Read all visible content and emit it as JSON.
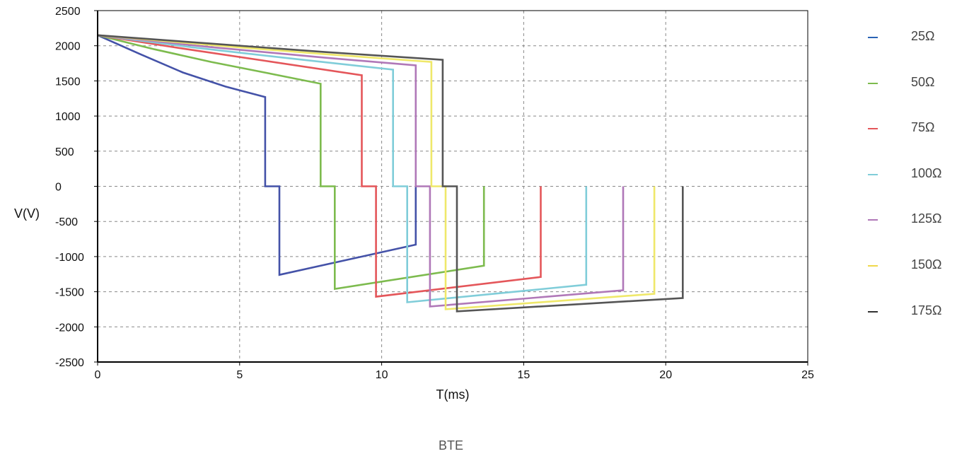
{
  "caption": "BTE",
  "chart_data": {
    "type": "line",
    "xlabel": "T(ms)",
    "ylabel": "V(V)",
    "xlim": [
      0,
      25
    ],
    "ylim": [
      -2500,
      2500
    ],
    "xticks": [
      0,
      5,
      10,
      15,
      20,
      25
    ],
    "yticks": [
      -2500,
      -2000,
      -1500,
      -1000,
      -500,
      0,
      500,
      1000,
      1500,
      2000,
      2500
    ],
    "grid": true,
    "legend_position": "right",
    "series": [
      {
        "name": "25Ω",
        "color": "#4452a8",
        "legend_color": "#2a63b5",
        "x": [
          0,
          1.5,
          3,
          4.5,
          5.9,
          5.9,
          6.4,
          6.4,
          11.2,
          11.2
        ],
        "y": [
          2150,
          1880,
          1620,
          1420,
          1270,
          0,
          0,
          -1260,
          -830,
          0
        ]
      },
      {
        "name": "50Ω",
        "color": "#7dbb4e",
        "legend_color": "#7dbb4e",
        "x": [
          0,
          2,
          4,
          6,
          7.85,
          7.85,
          8.35,
          8.35,
          13.6,
          13.6
        ],
        "y": [
          2150,
          1950,
          1770,
          1610,
          1460,
          0,
          0,
          -1460,
          -1130,
          0
        ]
      },
      {
        "name": "75Ω",
        "color": "#e4565a",
        "legend_color": "#e4565a",
        "x": [
          0,
          3,
          6,
          9.3,
          9.3,
          9.8,
          9.8,
          15.6,
          15.6
        ],
        "y": [
          2150,
          1960,
          1780,
          1580,
          0,
          0,
          -1570,
          -1290,
          0
        ]
      },
      {
        "name": "100Ω",
        "color": "#80cdd9",
        "legend_color": "#80cdd9",
        "x": [
          0,
          3.5,
          7,
          10.4,
          10.4,
          10.9,
          10.9,
          17.2,
          17.2
        ],
        "y": [
          2150,
          1970,
          1810,
          1660,
          0,
          0,
          -1650,
          -1400,
          0
        ]
      },
      {
        "name": "125Ω",
        "color": "#b078b8",
        "legend_color": "#b078b8",
        "x": [
          0,
          4,
          8,
          11.2,
          11.2,
          11.7,
          11.7,
          18.5,
          18.5
        ],
        "y": [
          2150,
          1980,
          1830,
          1720,
          0,
          0,
          -1710,
          -1480,
          0
        ]
      },
      {
        "name": "150Ω",
        "color": "#efe86a",
        "legend_color": "#efd84a",
        "x": [
          0,
          4,
          8,
          11.75,
          11.75,
          12.25,
          12.25,
          19.6,
          19.6
        ],
        "y": [
          2150,
          2010,
          1880,
          1770,
          0,
          0,
          -1750,
          -1530,
          0
        ]
      },
      {
        "name": "175Ω",
        "color": "#555555",
        "legend_color": "#333333",
        "x": [
          0,
          4,
          8,
          12.15,
          12.15,
          12.65,
          12.65,
          20.6,
          20.6
        ],
        "y": [
          2150,
          2030,
          1910,
          1800,
          0,
          0,
          -1780,
          -1590,
          0
        ]
      }
    ]
  }
}
